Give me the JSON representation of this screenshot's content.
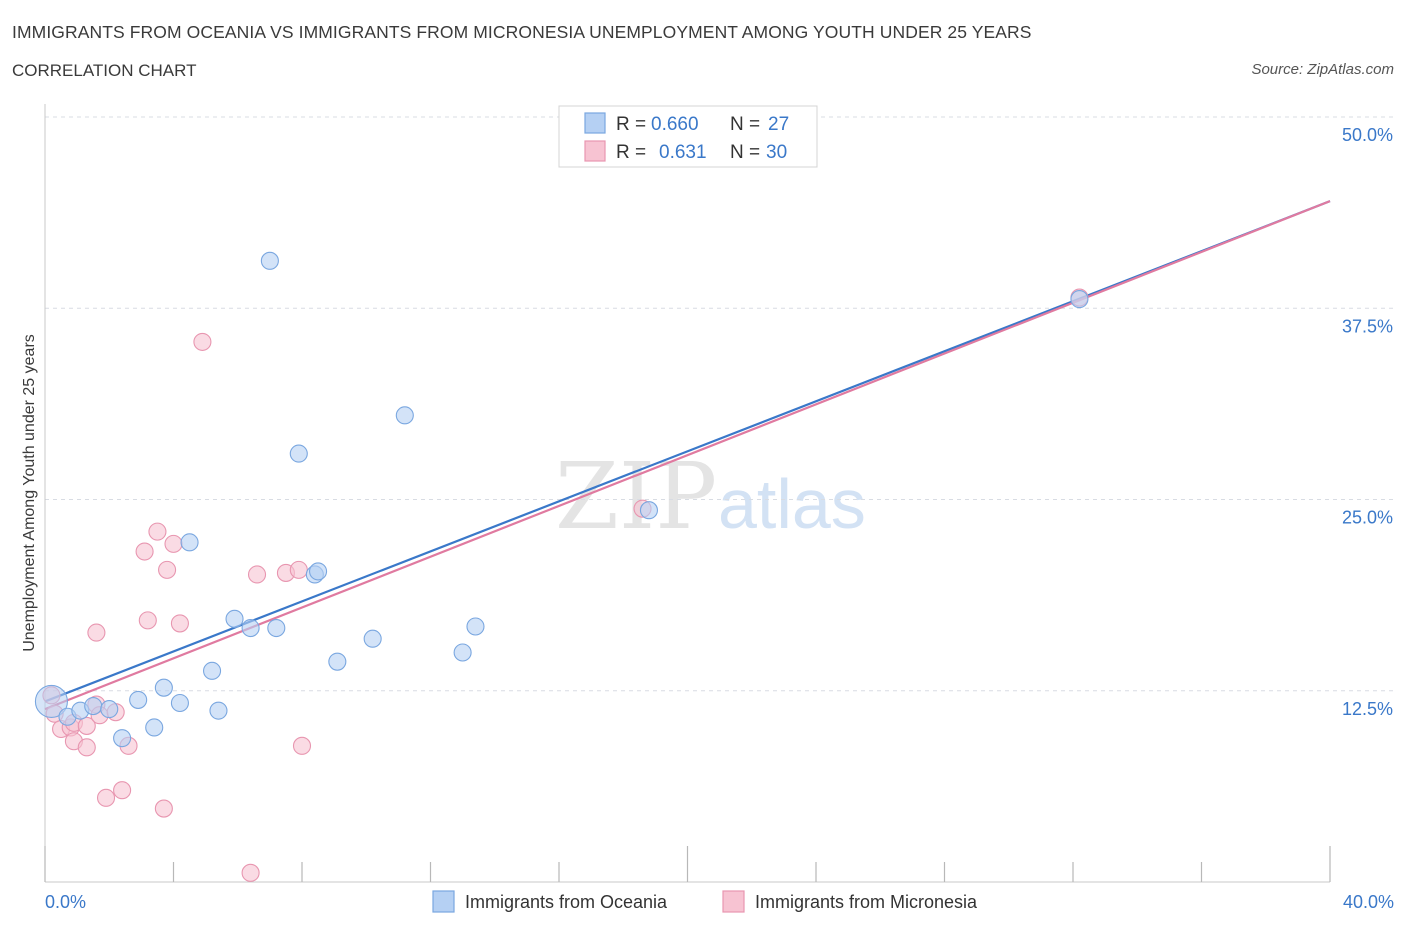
{
  "header": {
    "title": "IMMIGRANTS FROM OCEANIA VS IMMIGRANTS FROM MICRONESIA UNEMPLOYMENT AMONG YOUTH UNDER 25 YEARS",
    "subtitle": "CORRELATION CHART",
    "source": "Source: ZipAtlas.com"
  },
  "watermark": {
    "zip": "ZIP",
    "atlas": "atlas"
  },
  "colors": {
    "oceania_fill": "#b5d0f3",
    "oceania_stroke": "#7aa7e0",
    "oceania_line": "#3a78c9",
    "micronesia_fill": "#f7c3d2",
    "micronesia_stroke": "#e896b0",
    "micronesia_line": "#e07aa0",
    "value_text": "#3a78c9",
    "grid": "#d8dce3"
  },
  "chart_data": {
    "type": "scatter",
    "title": "IMMIGRANTS FROM OCEANIA VS IMMIGRANTS FROM MICRONESIA UNEMPLOYMENT AMONG YOUTH UNDER 25 YEARS",
    "subtitle": "CORRELATION CHART",
    "xlabel": "",
    "ylabel": "Unemployment Among Youth under 25 years",
    "xlim": [
      0,
      40
    ],
    "ylim": [
      0,
      50
    ],
    "x_tick_labels": [
      {
        "value": 0,
        "label": "0.0%"
      },
      {
        "value": 40,
        "label": "40.0%"
      }
    ],
    "x_minor_ticks": [
      0,
      4,
      8,
      12,
      16,
      20,
      24,
      28,
      32,
      36,
      40
    ],
    "y_ticks": [
      {
        "value": 12.5,
        "label": "12.5%"
      },
      {
        "value": 25,
        "label": "25.0%"
      },
      {
        "value": 37.5,
        "label": "37.5%"
      },
      {
        "value": 50,
        "label": "50.0%"
      }
    ],
    "legend_position": "top-center",
    "series": [
      {
        "name": "Immigrants from Oceania",
        "key": "oceania",
        "stats": {
          "r_label": "R =",
          "r_value": "0.660",
          "n_label": "N =",
          "n_value": "27"
        },
        "trend": {
          "x0": 0,
          "y0": 11.8,
          "x1": 40,
          "y1": 44.5
        },
        "points": [
          {
            "x": 0.2,
            "y": 11.8,
            "big": true
          },
          {
            "x": 0.7,
            "y": 10.8
          },
          {
            "x": 1.1,
            "y": 11.2
          },
          {
            "x": 1.5,
            "y": 11.5
          },
          {
            "x": 2.0,
            "y": 11.3
          },
          {
            "x": 2.4,
            "y": 9.4
          },
          {
            "x": 2.9,
            "y": 11.9
          },
          {
            "x": 3.4,
            "y": 10.1
          },
          {
            "x": 3.7,
            "y": 12.7
          },
          {
            "x": 4.2,
            "y": 11.7
          },
          {
            "x": 4.5,
            "y": 22.2
          },
          {
            "x": 5.2,
            "y": 13.8
          },
          {
            "x": 5.4,
            "y": 11.2
          },
          {
            "x": 5.9,
            "y": 17.2
          },
          {
            "x": 6.4,
            "y": 16.6
          },
          {
            "x": 7.0,
            "y": 40.6
          },
          {
            "x": 7.2,
            "y": 16.6
          },
          {
            "x": 7.9,
            "y": 28.0
          },
          {
            "x": 8.4,
            "y": 20.1
          },
          {
            "x": 8.5,
            "y": 20.3
          },
          {
            "x": 9.1,
            "y": 14.4
          },
          {
            "x": 10.2,
            "y": 15.9
          },
          {
            "x": 11.2,
            "y": 30.5
          },
          {
            "x": 13.0,
            "y": 15.0
          },
          {
            "x": 13.4,
            "y": 16.7
          },
          {
            "x": 18.8,
            "y": 24.3
          },
          {
            "x": 32.2,
            "y": 38.1
          }
        ]
      },
      {
        "name": "Immigrants from Micronesia",
        "key": "micronesia",
        "stats": {
          "r_label": "R =",
          "r_value": "0.631",
          "n_label": "N =",
          "n_value": "30"
        },
        "trend": {
          "x0": 0,
          "y0": 11.3,
          "x1": 40,
          "y1": 44.5
        },
        "points": [
          {
            "x": 0.2,
            "y": 12.2
          },
          {
            "x": 0.3,
            "y": 11.0
          },
          {
            "x": 0.5,
            "y": 10.0
          },
          {
            "x": 0.8,
            "y": 10.1
          },
          {
            "x": 0.9,
            "y": 10.4
          },
          {
            "x": 0.9,
            "y": 9.2
          },
          {
            "x": 1.3,
            "y": 10.2
          },
          {
            "x": 1.3,
            "y": 8.8
          },
          {
            "x": 1.6,
            "y": 11.6
          },
          {
            "x": 1.7,
            "y": 10.9
          },
          {
            "x": 1.6,
            "y": 16.3
          },
          {
            "x": 1.9,
            "y": 5.5
          },
          {
            "x": 2.2,
            "y": 11.1
          },
          {
            "x": 2.4,
            "y": 6.0
          },
          {
            "x": 2.6,
            "y": 8.9
          },
          {
            "x": 3.1,
            "y": 21.6
          },
          {
            "x": 3.2,
            "y": 17.1
          },
          {
            "x": 3.5,
            "y": 22.9
          },
          {
            "x": 3.7,
            "y": 4.8
          },
          {
            "x": 3.8,
            "y": 20.4
          },
          {
            "x": 4.0,
            "y": 22.1
          },
          {
            "x": 4.2,
            "y": 16.9
          },
          {
            "x": 4.9,
            "y": 35.3
          },
          {
            "x": 6.4,
            "y": 0.6
          },
          {
            "x": 6.6,
            "y": 20.1
          },
          {
            "x": 7.5,
            "y": 20.2
          },
          {
            "x": 7.9,
            "y": 20.4
          },
          {
            "x": 8.0,
            "y": 8.9
          },
          {
            "x": 18.6,
            "y": 24.4
          },
          {
            "x": 32.2,
            "y": 38.2
          }
        ]
      }
    ]
  }
}
